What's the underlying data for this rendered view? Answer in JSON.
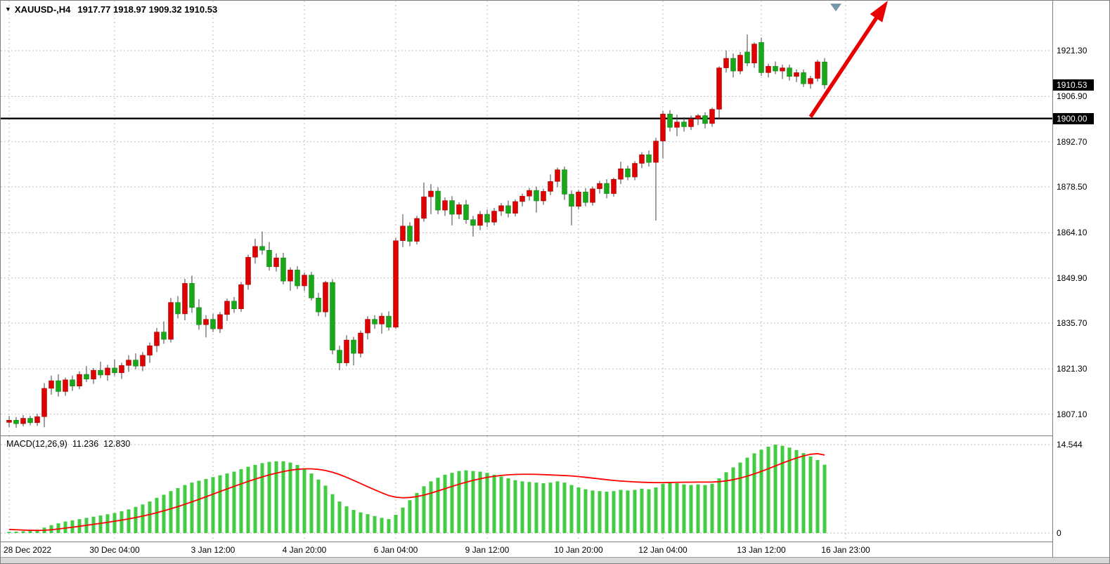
{
  "header": {
    "dropdown_icon": "▼",
    "title": "XAUUSD-,H4",
    "ohlc": "1917.77 1918.97 1909.32 1910.53"
  },
  "macd": {
    "name": "MACD(12,26,9)",
    "value_main": "11.236",
    "value_signal": "12.830"
  },
  "price_axis": {
    "ticks": [
      {
        "text": "1921.30",
        "value": 1921.3
      },
      {
        "text": "1906.90",
        "value": 1906.9
      },
      {
        "text": "1892.70",
        "value": 1892.7
      },
      {
        "text": "1878.50",
        "value": 1878.5
      },
      {
        "text": "1864.10",
        "value": 1864.1
      },
      {
        "text": "1849.90",
        "value": 1849.9
      },
      {
        "text": "1835.70",
        "value": 1835.7
      },
      {
        "text": "1821.30",
        "value": 1821.3
      },
      {
        "text": "1807.10",
        "value": 1807.1
      }
    ],
    "badges": [
      {
        "text": "1910.53",
        "value": 1910.53
      },
      {
        "text": "1900.00",
        "value": 1900.0
      }
    ]
  },
  "macd_axis": {
    "ticks": [
      {
        "text": "14.544",
        "value": 14.544
      },
      {
        "text": "0",
        "value": 0
      }
    ]
  },
  "time_axis": {
    "labels": [
      {
        "text": "28 Dec 2022",
        "index": 0
      },
      {
        "text": "30 Dec 04:00",
        "index": 15
      },
      {
        "text": "3 Jan 12:00",
        "index": 29
      },
      {
        "text": "4 Jan 20:00",
        "index": 42
      },
      {
        "text": "6 Jan 04:00",
        "index": 55
      },
      {
        "text": "9 Jan 12:00",
        "index": 68
      },
      {
        "text": "10 Jan 20:00",
        "index": 81
      },
      {
        "text": "12 Jan 04:00",
        "index": 93
      },
      {
        "text": "13 Jan 12:00",
        "index": 107
      },
      {
        "text": "16 Jan 23:00",
        "index": 119
      }
    ]
  },
  "colors": {
    "bull_candle": "#e00000",
    "bull_stroke": "#990000",
    "bear_candle": "#19a819",
    "bear_stroke": "#0c7a0c",
    "wick": "#404040",
    "macd_bar": "#41cc41",
    "macd_signal": "#ff0000",
    "grid": "#bdbdbd",
    "hline": "#000000",
    "arrow": "#e80000",
    "marker": "#7596a8",
    "badge_bg": "#000000",
    "badge_text": "#ffffff"
  },
  "chart_data": [
    {
      "type": "candlestick",
      "symbol": "XAUUSD-",
      "timeframe": "H4",
      "title": "XAUUSD-,H4 1917.77 1918.97 1909.32 1910.53",
      "y_axis_ticks": [
        1921.3,
        1906.9,
        1892.7,
        1878.5,
        1864.1,
        1849.9,
        1835.7,
        1821.3,
        1807.1
      ],
      "y_range": [
        1800.4,
        1937.0
      ],
      "horizontal_line": 1900.0,
      "current_price": 1910.53,
      "last_candle_ohlc": {
        "open": 1917.77,
        "high": 1918.97,
        "low": 1909.32,
        "close": 1910.53
      },
      "color_convention": "bullish=red, bearish=green",
      "candles": [
        [
          1804.5,
          1806.5,
          1803.0,
          1805.2
        ],
        [
          1805.2,
          1806.2,
          1802.8,
          1804.1
        ],
        [
          1804.1,
          1806.8,
          1803.3,
          1805.8
        ],
        [
          1805.8,
          1806.6,
          1803.6,
          1804.4
        ],
        [
          1804.4,
          1807.2,
          1803.4,
          1806.3
        ],
        [
          1806.3,
          1816.8,
          1803.0,
          1815.2
        ],
        [
          1815.2,
          1819.2,
          1813.2,
          1817.6
        ],
        [
          1817.6,
          1819.6,
          1812.6,
          1814.2
        ],
        [
          1814.2,
          1818.6,
          1812.9,
          1817.9
        ],
        [
          1817.9,
          1819.2,
          1814.4,
          1815.9
        ],
        [
          1815.9,
          1820.6,
          1814.9,
          1819.6
        ],
        [
          1819.6,
          1822.2,
          1817.2,
          1818.1
        ],
        [
          1818.1,
          1821.6,
          1816.6,
          1820.9
        ],
        [
          1820.9,
          1823.6,
          1818.4,
          1819.4
        ],
        [
          1819.4,
          1822.6,
          1817.6,
          1821.6
        ],
        [
          1821.6,
          1824.2,
          1819.2,
          1820.1
        ],
        [
          1820.1,
          1823.2,
          1818.2,
          1822.4
        ],
        [
          1822.4,
          1825.6,
          1820.4,
          1824.1
        ],
        [
          1824.1,
          1826.2,
          1821.2,
          1822.2
        ],
        [
          1822.2,
          1826.6,
          1820.6,
          1825.6
        ],
        [
          1825.6,
          1829.6,
          1823.2,
          1828.6
        ],
        [
          1828.6,
          1834.2,
          1826.6,
          1832.9
        ],
        [
          1832.9,
          1836.2,
          1829.2,
          1830.6
        ],
        [
          1830.6,
          1843.6,
          1829.6,
          1842.2
        ],
        [
          1842.2,
          1844.2,
          1837.2,
          1838.6
        ],
        [
          1838.6,
          1849.6,
          1836.6,
          1848.2
        ],
        [
          1848.2,
          1850.6,
          1838.9,
          1840.6
        ],
        [
          1840.6,
          1843.2,
          1833.6,
          1835.2
        ],
        [
          1835.2,
          1838.2,
          1831.2,
          1836.9
        ],
        [
          1836.9,
          1838.6,
          1832.9,
          1833.9
        ],
        [
          1833.9,
          1839.2,
          1832.6,
          1838.4
        ],
        [
          1838.4,
          1843.4,
          1836.4,
          1842.6
        ],
        [
          1842.6,
          1843.9,
          1838.9,
          1840.2
        ],
        [
          1840.2,
          1848.6,
          1839.2,
          1847.8
        ],
        [
          1847.8,
          1857.2,
          1846.2,
          1856.4
        ],
        [
          1856.4,
          1862.2,
          1854.4,
          1859.8
        ],
        [
          1859.8,
          1864.5,
          1857.2,
          1858.6
        ],
        [
          1858.6,
          1861.2,
          1852.2,
          1853.4
        ],
        [
          1853.4,
          1857.6,
          1851.9,
          1856.2
        ],
        [
          1856.2,
          1857.8,
          1847.9,
          1848.9
        ],
        [
          1848.9,
          1853.2,
          1845.9,
          1852.4
        ],
        [
          1852.4,
          1853.6,
          1846.4,
          1847.4
        ],
        [
          1847.4,
          1851.6,
          1845.8,
          1850.8
        ],
        [
          1850.8,
          1851.8,
          1842.8,
          1843.6
        ],
        [
          1843.6,
          1845.2,
          1837.9,
          1839.2
        ],
        [
          1839.2,
          1849.0,
          1837.6,
          1848.5
        ],
        [
          1848.5,
          1849.5,
          1825.9,
          1827.2
        ],
        [
          1827.2,
          1828.6,
          1820.9,
          1823.2
        ],
        [
          1823.2,
          1831.9,
          1822.2,
          1830.4
        ],
        [
          1830.4,
          1831.4,
          1822.4,
          1826.2
        ],
        [
          1826.2,
          1833.4,
          1824.9,
          1832.6
        ],
        [
          1832.6,
          1837.9,
          1830.6,
          1836.9
        ],
        [
          1836.9,
          1838.2,
          1833.9,
          1835.4
        ],
        [
          1835.4,
          1838.9,
          1832.4,
          1837.9
        ],
        [
          1837.9,
          1839.4,
          1833.4,
          1834.4
        ],
        [
          1834.4,
          1862.4,
          1833.9,
          1861.6
        ],
        [
          1861.6,
          1869.9,
          1859.6,
          1866.2
        ],
        [
          1866.2,
          1867.4,
          1859.9,
          1861.4
        ],
        [
          1861.4,
          1869.4,
          1860.4,
          1868.6
        ],
        [
          1868.6,
          1879.9,
          1867.6,
          1875.4
        ],
        [
          1875.4,
          1879.4,
          1869.9,
          1877.2
        ],
        [
          1877.2,
          1878.4,
          1869.9,
          1871.2
        ],
        [
          1871.2,
          1875.2,
          1869.4,
          1874.2
        ],
        [
          1874.2,
          1875.6,
          1866.4,
          1869.9
        ],
        [
          1869.9,
          1873.6,
          1868.4,
          1872.9
        ],
        [
          1872.9,
          1874.4,
          1866.9,
          1868.2
        ],
        [
          1868.2,
          1869.4,
          1862.9,
          1866.4
        ],
        [
          1866.4,
          1870.9,
          1864.9,
          1869.9
        ],
        [
          1869.9,
          1871.4,
          1865.9,
          1867.4
        ],
        [
          1867.4,
          1871.9,
          1866.4,
          1870.9
        ],
        [
          1870.9,
          1873.4,
          1869.4,
          1872.6
        ],
        [
          1872.6,
          1874.2,
          1868.9,
          1870.2
        ],
        [
          1870.2,
          1874.6,
          1869.2,
          1873.9
        ],
        [
          1873.9,
          1876.4,
          1872.4,
          1875.6
        ],
        [
          1875.6,
          1878.2,
          1874.2,
          1877.4
        ],
        [
          1877.4,
          1878.6,
          1870.4,
          1874.1
        ],
        [
          1874.1,
          1877.9,
          1872.9,
          1877.1
        ],
        [
          1877.1,
          1882.4,
          1875.9,
          1880.2
        ],
        [
          1880.2,
          1884.6,
          1878.4,
          1883.9
        ],
        [
          1883.9,
          1884.9,
          1874.4,
          1876.2
        ],
        [
          1876.2,
          1877.4,
          1866.4,
          1872.4
        ],
        [
          1872.4,
          1877.6,
          1871.4,
          1876.9
        ],
        [
          1876.9,
          1878.1,
          1872.4,
          1873.6
        ],
        [
          1873.6,
          1878.6,
          1872.6,
          1877.9
        ],
        [
          1877.9,
          1880.4,
          1876.4,
          1879.6
        ],
        [
          1879.6,
          1880.9,
          1874.9,
          1876.4
        ],
        [
          1876.4,
          1881.4,
          1875.4,
          1880.9
        ],
        [
          1880.9,
          1886.4,
          1879.4,
          1884.2
        ],
        [
          1884.2,
          1885.2,
          1880.6,
          1881.6
        ],
        [
          1881.6,
          1886.6,
          1880.6,
          1885.9
        ],
        [
          1885.9,
          1889.4,
          1884.4,
          1888.6
        ],
        [
          1888.6,
          1889.9,
          1884.9,
          1886.2
        ],
        [
          1886.2,
          1893.9,
          1867.9,
          1892.9
        ],
        [
          1892.9,
          1902.4,
          1887.4,
          1901.4
        ],
        [
          1901.4,
          1902.6,
          1895.9,
          1897.2
        ],
        [
          1897.2,
          1901.2,
          1894.4,
          1898.9
        ],
        [
          1898.9,
          1900.4,
          1895.9,
          1897.4
        ],
        [
          1897.4,
          1900.9,
          1896.4,
          1899.9
        ],
        [
          1899.9,
          1901.4,
          1897.9,
          1900.9
        ],
        [
          1900.9,
          1901.9,
          1896.9,
          1898.4
        ],
        [
          1898.4,
          1903.4,
          1897.4,
          1902.9
        ],
        [
          1902.9,
          1916.4,
          1899.9,
          1915.9
        ],
        [
          1915.9,
          1921.4,
          1914.4,
          1918.9
        ],
        [
          1918.9,
          1920.4,
          1912.9,
          1914.9
        ],
        [
          1914.9,
          1920.9,
          1913.9,
          1919.9
        ],
        [
          1920.9,
          1926.4,
          1916.4,
          1917.4
        ],
        [
          1917.4,
          1923.9,
          1915.9,
          1923.4
        ],
        [
          1923.9,
          1925.4,
          1913.4,
          1914.4
        ],
        [
          1914.4,
          1917.2,
          1912.9,
          1916.4
        ],
        [
          1916.4,
          1917.9,
          1913.9,
          1914.9
        ],
        [
          1914.9,
          1916.9,
          1912.4,
          1915.9
        ],
        [
          1915.9,
          1916.9,
          1911.9,
          1913.2
        ],
        [
          1913.2,
          1915.4,
          1911.4,
          1914.4
        ],
        [
          1914.4,
          1915.4,
          1909.9,
          1910.9
        ],
        [
          1910.9,
          1913.4,
          1909.4,
          1912.6
        ],
        [
          1912.6,
          1918.4,
          1911.6,
          1917.8
        ],
        [
          1917.77,
          1918.97,
          1909.32,
          1910.53
        ]
      ],
      "annotations": {
        "trend_arrow": {
          "from_index": 114,
          "from_price": 1900.5,
          "to_index": 125,
          "to_price": 1937.0
        },
        "triangle_marker": {
          "index": 117.6,
          "price": 1935.0
        }
      }
    },
    {
      "type": "macd",
      "title": "MACD(12,26,9)",
      "params": "12,26,9",
      "main_value": 11.236,
      "signal_value": 12.83,
      "y_max": 14.544,
      "y_ticks": [
        14.544,
        0
      ],
      "histogram": [
        0.2,
        0.25,
        0.3,
        0.4,
        0.55,
        0.9,
        1.3,
        1.6,
        1.9,
        2.1,
        2.3,
        2.5,
        2.7,
        2.9,
        3.1,
        3.3,
        3.6,
        3.9,
        4.3,
        4.7,
        5.2,
        5.8,
        6.3,
        6.9,
        7.4,
        7.9,
        8.3,
        8.6,
        8.9,
        9.2,
        9.5,
        9.8,
        10.1,
        10.5,
        10.9,
        11.2,
        11.5,
        11.7,
        11.8,
        11.8,
        11.6,
        11.2,
        10.6,
        9.8,
        8.8,
        7.8,
        6.4,
        5.2,
        4.4,
        3.8,
        3.4,
        3.1,
        2.8,
        2.5,
        2.3,
        3.0,
        4.2,
        5.4,
        6.6,
        7.7,
        8.5,
        9.1,
        9.6,
        9.9,
        10.2,
        10.3,
        10.2,
        10.1,
        9.9,
        9.6,
        9.3,
        9.0,
        8.7,
        8.5,
        8.4,
        8.3,
        8.2,
        8.3,
        8.5,
        8.3,
        7.9,
        7.5,
        7.2,
        7.0,
        6.9,
        6.8,
        6.9,
        7.1,
        7.0,
        7.1,
        7.3,
        7.2,
        7.5,
        8.1,
        8.3,
        8.2,
        8.0,
        7.9,
        8.0,
        7.9,
        8.1,
        9.0,
        10.0,
        10.8,
        11.6,
        12.4,
        13.1,
        13.7,
        14.2,
        14.544,
        14.35,
        14.05,
        13.65,
        13.15,
        12.6,
        12.0,
        11.236
      ],
      "signal": [
        0.6,
        0.55,
        0.5,
        0.46,
        0.44,
        0.46,
        0.55,
        0.68,
        0.82,
        0.97,
        1.12,
        1.28,
        1.44,
        1.6,
        1.77,
        1.95,
        2.14,
        2.34,
        2.56,
        2.8,
        3.06,
        3.35,
        3.66,
        4.0,
        4.36,
        4.74,
        5.14,
        5.55,
        5.97,
        6.4,
        6.83,
        7.26,
        7.68,
        8.09,
        8.49,
        8.87,
        9.23,
        9.56,
        9.86,
        10.12,
        10.33,
        10.48,
        10.56,
        10.56,
        10.47,
        10.29,
        10.0,
        9.62,
        9.17,
        8.67,
        8.15,
        7.63,
        7.12,
        6.63,
        6.17,
        5.9,
        5.8,
        5.85,
        6.0,
        6.25,
        6.57,
        6.93,
        7.3,
        7.67,
        8.03,
        8.37,
        8.67,
        8.93,
        9.16,
        9.34,
        9.48,
        9.58,
        9.64,
        9.67,
        9.67,
        9.65,
        9.61,
        9.56,
        9.51,
        9.46,
        9.39,
        9.29,
        9.17,
        9.04,
        8.91,
        8.78,
        8.66,
        8.56,
        8.48,
        8.41,
        8.36,
        8.32,
        8.3,
        8.3,
        8.32,
        8.34,
        8.36,
        8.37,
        8.38,
        8.38,
        8.39,
        8.45,
        8.58,
        8.78,
        9.04,
        9.36,
        9.73,
        10.14,
        10.58,
        11.04,
        11.5,
        11.94,
        12.34,
        12.68,
        12.95,
        13.05,
        12.83
      ]
    }
  ]
}
